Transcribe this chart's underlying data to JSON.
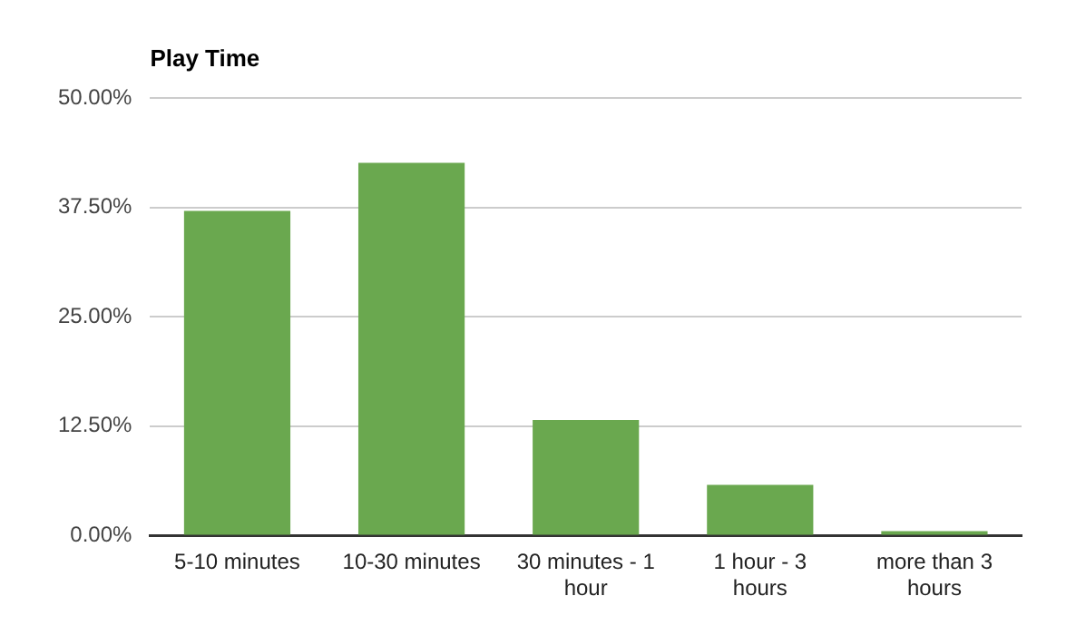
{
  "chart_data": {
    "type": "bar",
    "title": "Play Time",
    "categories": [
      "5-10 minutes",
      "10-30 minutes",
      "30 minutes - 1 hour",
      "1 hour - 3 hours",
      "more than 3 hours"
    ],
    "values": [
      37.1,
      42.6,
      13.2,
      5.8,
      0.5
    ],
    "color": "#6aa84f",
    "ylim": [
      0,
      50
    ],
    "yticks": [
      {
        "value": 0,
        "label": "0.00%"
      },
      {
        "value": 12.5,
        "label": "12.50%"
      },
      {
        "value": 25,
        "label": "25.00%"
      },
      {
        "value": 37.5,
        "label": "37.50%"
      },
      {
        "value": 50,
        "label": "50.00%"
      }
    ],
    "grid": "y",
    "legend": false
  }
}
